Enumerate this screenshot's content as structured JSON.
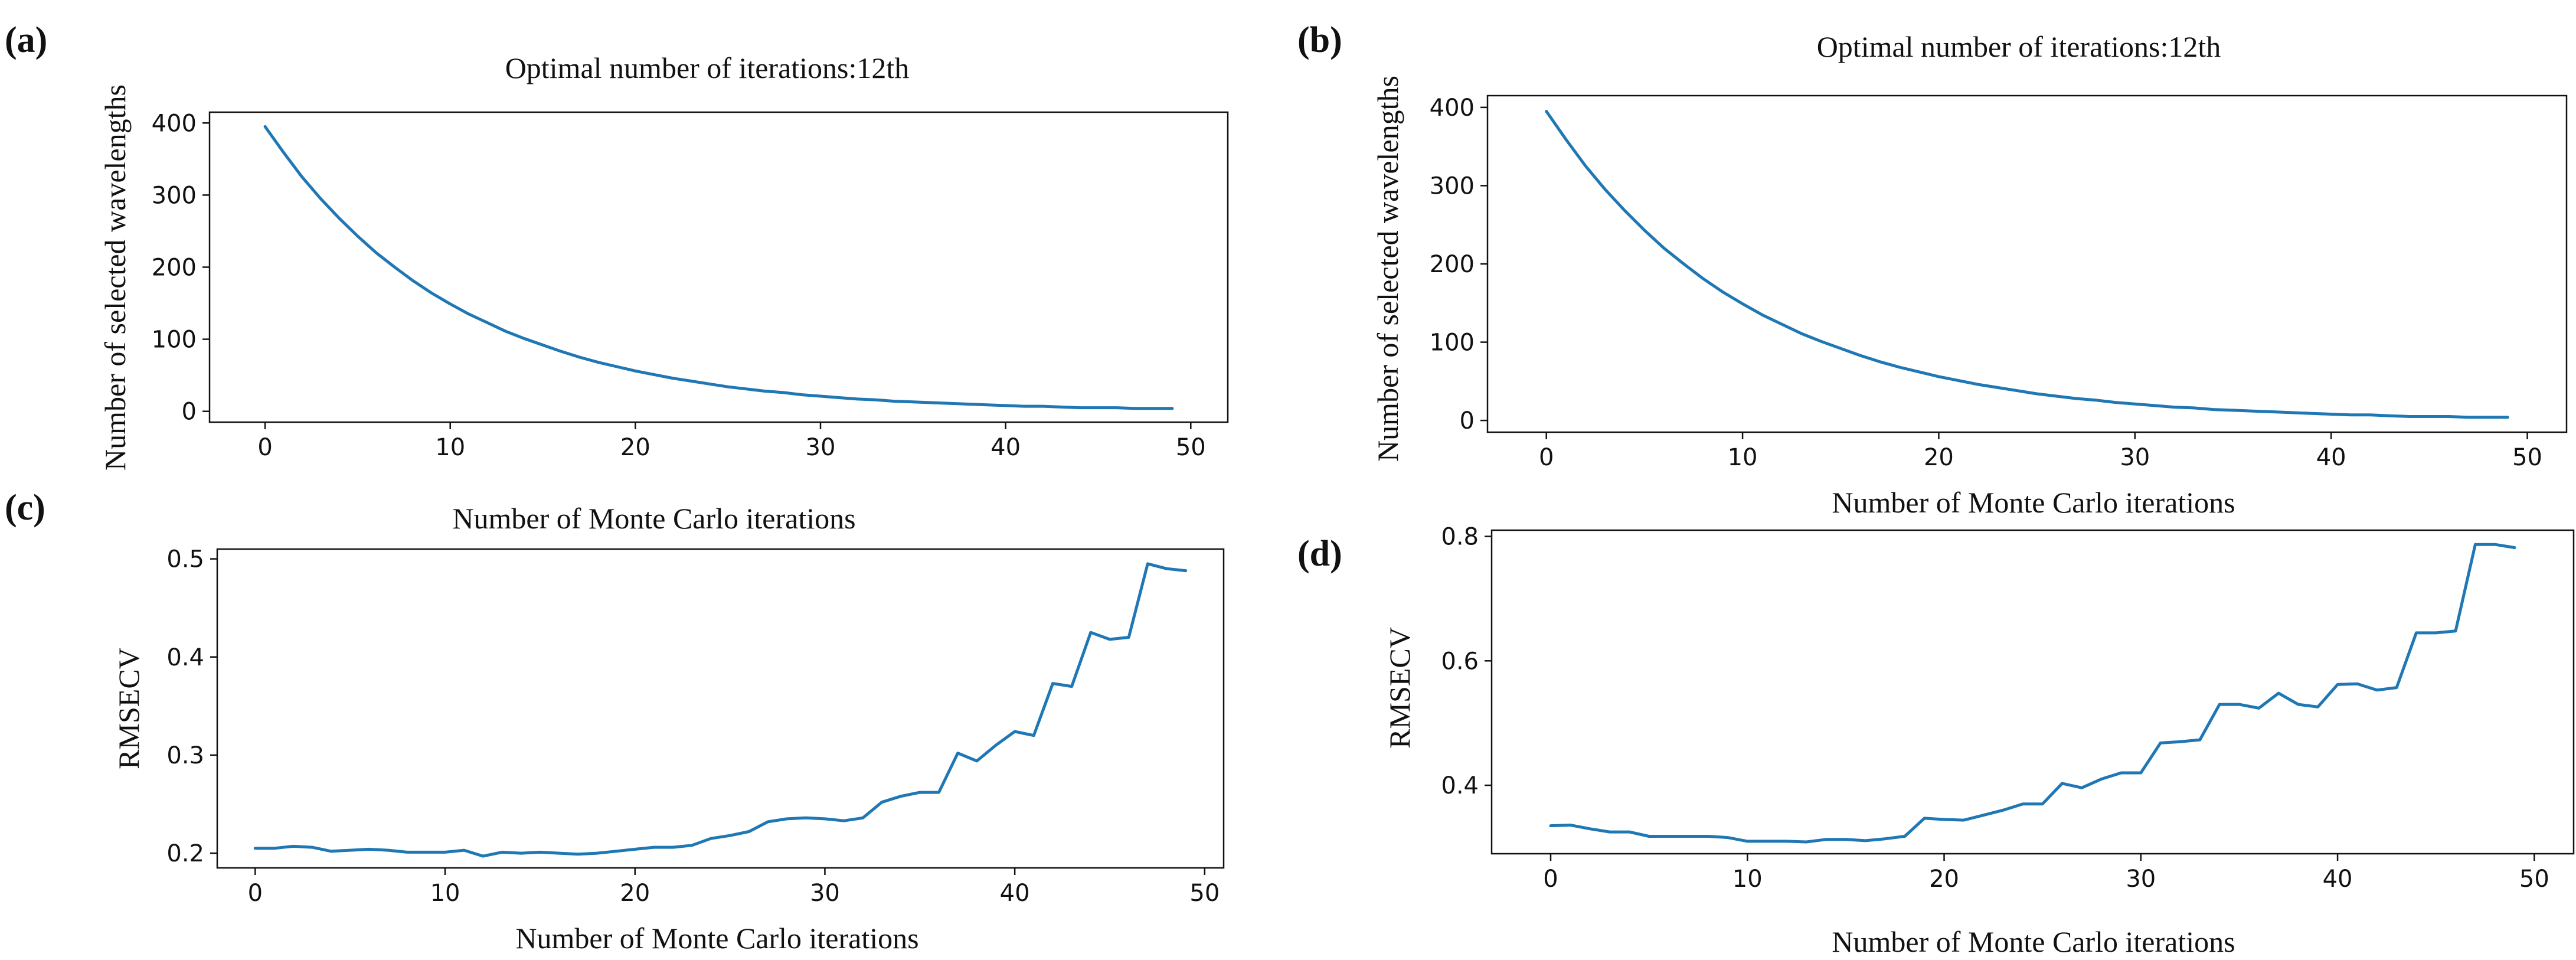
{
  "chart_data": [
    {
      "panel": "(a)",
      "type": "line",
      "title": "Optimal number of iterations:12th",
      "xlabel": "",
      "ylabel": "Number of selected wavelengths",
      "xlim": [
        -3,
        52
      ],
      "ylim": [
        -15,
        415
      ],
      "xticks": [
        0,
        10,
        20,
        30,
        40,
        50
      ],
      "yticks": [
        0,
        100,
        200,
        300,
        400
      ],
      "series_color": "#1f77b4",
      "x": [
        0,
        1,
        2,
        3,
        4,
        5,
        6,
        7,
        8,
        9,
        10,
        11,
        12,
        13,
        14,
        15,
        16,
        17,
        18,
        19,
        20,
        21,
        22,
        23,
        24,
        25,
        26,
        27,
        28,
        29,
        30,
        31,
        32,
        33,
        34,
        35,
        36,
        37,
        38,
        39,
        40,
        41,
        42,
        43,
        44,
        45,
        46,
        47,
        48,
        49
      ],
      "y": [
        395,
        359,
        325,
        295,
        268,
        243,
        220,
        200,
        181,
        164,
        149,
        135,
        123,
        111,
        101,
        92,
        83,
        75,
        68,
        62,
        56,
        51,
        46,
        42,
        38,
        34,
        31,
        28,
        26,
        23,
        21,
        19,
        17,
        16,
        14,
        13,
        12,
        11,
        10,
        9,
        8,
        7,
        7,
        6,
        5,
        5,
        5,
        4,
        4,
        4
      ]
    },
    {
      "panel": "(b)",
      "type": "line",
      "title": "Optimal number of iterations:12th",
      "xlabel": "Number of Monte Carlo iterations",
      "ylabel": "Number of selected wavelengths",
      "xlim": [
        -3,
        52
      ],
      "ylim": [
        -15,
        415
      ],
      "xticks": [
        0,
        10,
        20,
        30,
        40,
        50
      ],
      "yticks": [
        0,
        100,
        200,
        300,
        400
      ],
      "series_color": "#1f77b4",
      "x": [
        0,
        1,
        2,
        3,
        4,
        5,
        6,
        7,
        8,
        9,
        10,
        11,
        12,
        13,
        14,
        15,
        16,
        17,
        18,
        19,
        20,
        21,
        22,
        23,
        24,
        25,
        26,
        27,
        28,
        29,
        30,
        31,
        32,
        33,
        34,
        35,
        36,
        37,
        38,
        39,
        40,
        41,
        42,
        43,
        44,
        45,
        46,
        47,
        48,
        49
      ],
      "y": [
        395,
        359,
        325,
        295,
        268,
        243,
        220,
        200,
        181,
        164,
        149,
        135,
        123,
        111,
        101,
        92,
        83,
        75,
        68,
        62,
        56,
        51,
        46,
        42,
        38,
        34,
        31,
        28,
        26,
        23,
        21,
        19,
        17,
        16,
        14,
        13,
        12,
        11,
        10,
        9,
        8,
        7,
        7,
        6,
        5,
        5,
        5,
        4,
        4,
        4
      ]
    },
    {
      "panel": "(c)",
      "type": "line",
      "title": "Number of Monte Carlo iterations",
      "xlabel": "Number of Monte Carlo iterations",
      "ylabel": "RMSECV",
      "xlim": [
        -2,
        51
      ],
      "ylim": [
        0.185,
        0.51
      ],
      "xticks": [
        0,
        10,
        20,
        30,
        40,
        50
      ],
      "yticks": [
        "0.2",
        "0.3",
        "0.4",
        "0.5"
      ],
      "series_color": "#1f77b4",
      "x": [
        0,
        1,
        2,
        3,
        4,
        5,
        6,
        7,
        8,
        9,
        10,
        11,
        12,
        13,
        14,
        15,
        16,
        17,
        18,
        19,
        20,
        21,
        22,
        23,
        24,
        25,
        26,
        27,
        28,
        29,
        30,
        31,
        32,
        33,
        34,
        35,
        36,
        37,
        38,
        39,
        40,
        41,
        42,
        43,
        44,
        45,
        46,
        47,
        48,
        49
      ],
      "y": [
        0.205,
        0.205,
        0.207,
        0.206,
        0.202,
        0.203,
        0.204,
        0.203,
        0.201,
        0.201,
        0.201,
        0.203,
        0.197,
        0.201,
        0.2,
        0.201,
        0.2,
        0.199,
        0.2,
        0.202,
        0.204,
        0.206,
        0.206,
        0.208,
        0.215,
        0.218,
        0.222,
        0.232,
        0.235,
        0.236,
        0.235,
        0.233,
        0.236,
        0.252,
        0.258,
        0.262,
        0.262,
        0.302,
        0.294,
        0.31,
        0.324,
        0.32,
        0.373,
        0.37,
        0.425,
        0.418,
        0.42,
        0.495,
        0.49,
        0.488
      ]
    },
    {
      "panel": "(d)",
      "type": "line",
      "title": "",
      "xlabel": "Number of Monte Carlo iterations",
      "ylabel": "RMSECV",
      "xlim": [
        -3,
        52
      ],
      "ylim": [
        0.29,
        0.81
      ],
      "xticks": [
        0,
        10,
        20,
        30,
        40,
        50
      ],
      "yticks": [
        "0.4",
        "0.6",
        "0.8"
      ],
      "series_color": "#1f77b4",
      "x": [
        0,
        1,
        2,
        3,
        4,
        5,
        6,
        7,
        8,
        9,
        10,
        11,
        12,
        13,
        14,
        15,
        16,
        17,
        18,
        19,
        20,
        21,
        22,
        23,
        24,
        25,
        26,
        27,
        28,
        29,
        30,
        31,
        32,
        33,
        34,
        35,
        36,
        37,
        38,
        39,
        40,
        41,
        42,
        43,
        44,
        45,
        46,
        47,
        48,
        49
      ],
      "y": [
        0.335,
        0.336,
        0.33,
        0.325,
        0.325,
        0.318,
        0.318,
        0.318,
        0.318,
        0.316,
        0.31,
        0.31,
        0.31,
        0.309,
        0.313,
        0.313,
        0.311,
        0.314,
        0.318,
        0.347,
        0.345,
        0.344,
        0.352,
        0.36,
        0.37,
        0.37,
        0.403,
        0.396,
        0.41,
        0.42,
        0.42,
        0.468,
        0.47,
        0.473,
        0.53,
        0.53,
        0.524,
        0.548,
        0.53,
        0.526,
        0.562,
        0.563,
        0.553,
        0.557,
        0.645,
        0.645,
        0.648,
        0.787,
        0.787,
        0.782
      ]
    }
  ]
}
